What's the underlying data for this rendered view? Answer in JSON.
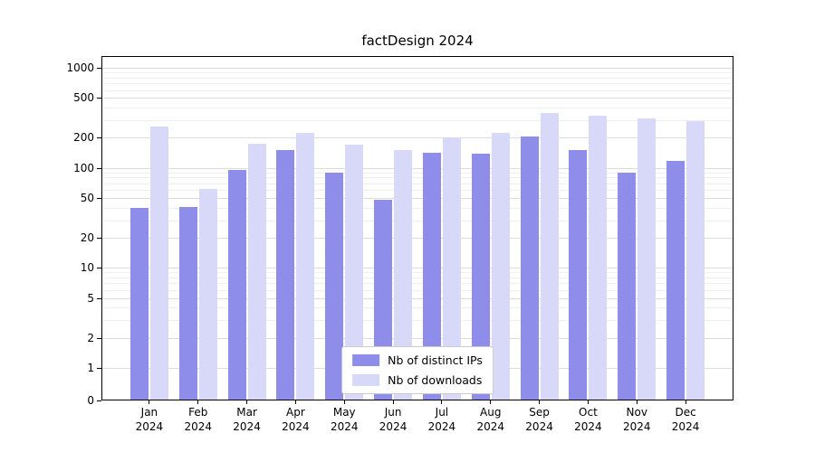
{
  "chart_data": {
    "type": "bar",
    "title": "factDesign 2024",
    "categories": [
      "Jan 2024",
      "Feb 2024",
      "Mar 2024",
      "Apr 2024",
      "May 2024",
      "Jun 2024",
      "Jul 2024",
      "Aug 2024",
      "Sep 2024",
      "Oct 2024",
      "Nov 2024",
      "Dec 2024"
    ],
    "series": [
      {
        "name": "Nb of distinct IPs",
        "color": "#8e8eea",
        "values": [
          40,
          41,
          95,
          150,
          90,
          48,
          140,
          138,
          205,
          152,
          90,
          118
        ]
      },
      {
        "name": "Nb of downloads",
        "color": "#d8d8f8",
        "values": [
          260,
          62,
          175,
          225,
          170,
          150,
          200,
          225,
          350,
          330,
          310,
          295
        ]
      }
    ],
    "y_axis": {
      "scale": "symlog",
      "ticks": [
        0,
        1,
        2,
        5,
        10,
        20,
        50,
        100,
        200,
        500,
        1000
      ],
      "max": 1300,
      "grid": "on"
    },
    "legend_position": "lower center",
    "colors": {
      "grid_major": "#dcdcdc",
      "grid_minor": "#efefef",
      "frame": "#000000",
      "background": "#ffffff"
    }
  }
}
